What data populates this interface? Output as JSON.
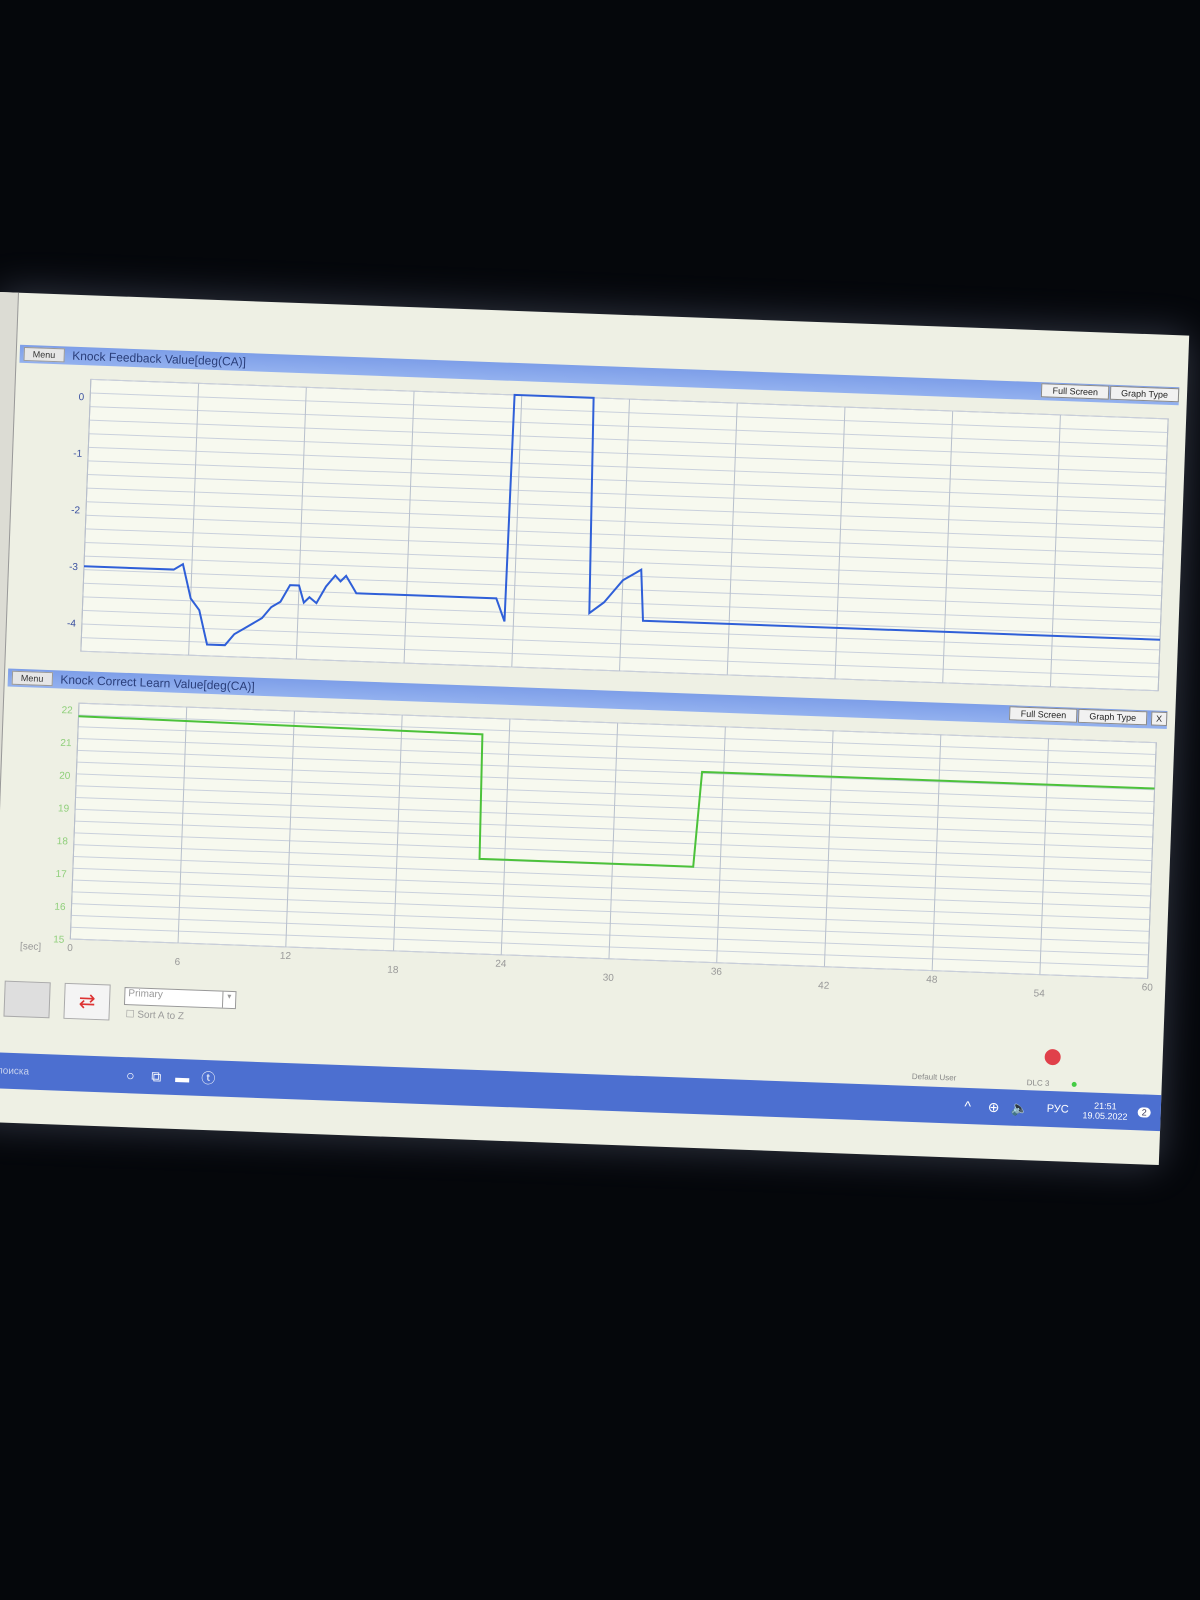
{
  "taskbar": {
    "search_placeholder": "для поиска",
    "lang": "РУС",
    "time": "21:51",
    "date": "19.05.2022",
    "notification_count": "2"
  },
  "status": {
    "user": "Default User",
    "connection": "DLC 3"
  },
  "controls": {
    "menu_label": "Menu",
    "full_screen_label": "Full Screen",
    "graph_type_label": "Graph Type",
    "close_label": "X",
    "sort_select_value": "Primary",
    "sort_checkbox_label": "Sort A to Z",
    "x_unit": "[sec]"
  },
  "colors": {
    "top_series": "#2f5fd8",
    "bottom_series": "#4cc23a",
    "title_bar": "#87a6ec",
    "record_button": "#e0404a"
  },
  "chart_data": [
    {
      "type": "line",
      "title": "Knock Feedback Value[deg(CA)]",
      "xlim": [
        0,
        60
      ],
      "ylim": [
        -4.5,
        0.3
      ],
      "yticks": [
        0,
        -1,
        -2,
        -3,
        -4
      ],
      "xticks": [
        0,
        6,
        12,
        18,
        24,
        30,
        36,
        42,
        48,
        54,
        60
      ],
      "grid": true,
      "x": [
        0,
        5,
        5.5,
        6,
        6.5,
        7,
        8,
        8.5,
        9,
        9.5,
        10,
        10.5,
        11,
        11.5,
        12,
        12.3,
        12.6,
        13,
        13.5,
        14,
        14.3,
        14.6,
        15,
        15.2,
        15.5,
        23,
        23.5,
        23.6,
        28,
        28.2,
        29,
        29.5,
        30,
        30.5,
        31,
        31.2,
        60
      ],
      "y": [
        -3,
        -3,
        -2.9,
        -3.5,
        -3.7,
        -4.3,
        -4.3,
        -4.1,
        -4,
        -3.9,
        -3.8,
        -3.6,
        -3.5,
        -3.2,
        -3.2,
        -3.5,
        -3.4,
        -3.5,
        -3.2,
        -3.0,
        -3.1,
        -3.0,
        -3.2,
        -3.3,
        -3.3,
        -3.3,
        -3.7,
        0.3,
        0.3,
        -3.5,
        -3.3,
        -3.1,
        -2.9,
        -2.8,
        -2.7,
        -3.6,
        -3.6
      ]
    },
    {
      "type": "line",
      "title": "Knock Correct Learn Value[deg(CA)]",
      "xlim": [
        0,
        60
      ],
      "ylim": [
        15,
        22.2
      ],
      "yticks": [
        22,
        21,
        20,
        19,
        18,
        17,
        16,
        15
      ],
      "xticks": [
        0,
        6,
        12,
        18,
        24,
        30,
        36,
        42,
        48,
        54,
        60
      ],
      "xlabel": "[sec]",
      "grid": true,
      "x": [
        0,
        22.5,
        22.6,
        34.5,
        34.8,
        60
      ],
      "y": [
        21.8,
        21.7,
        17.9,
        17.9,
        20.8,
        20.8
      ]
    }
  ]
}
